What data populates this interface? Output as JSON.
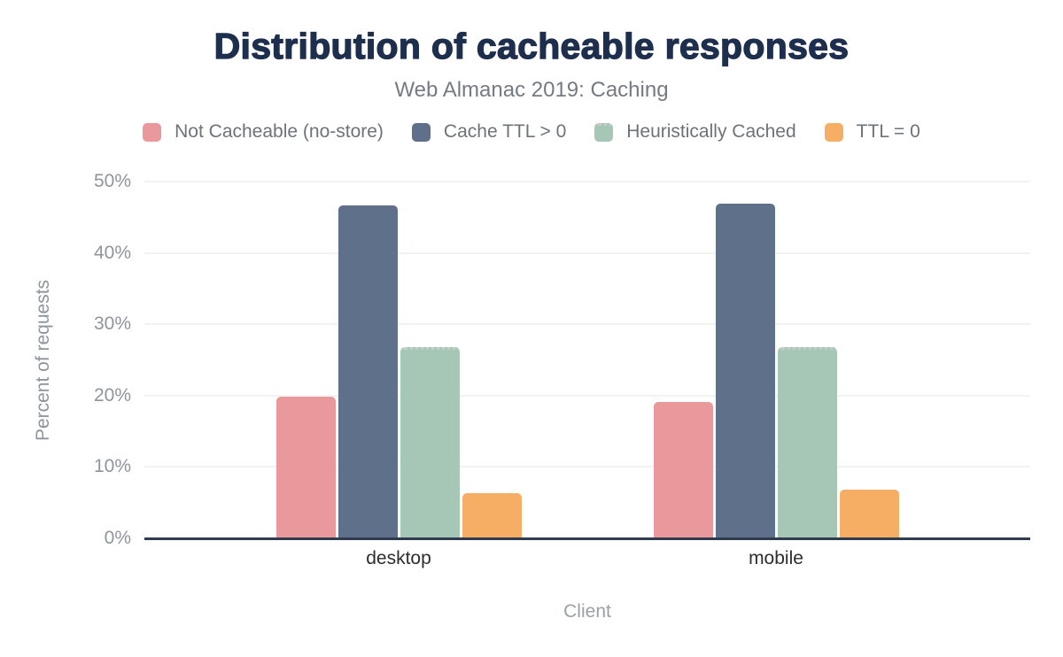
{
  "chart": {
    "title": "Distribution of cacheable responses",
    "subtitle": "Web Almanac 2019: Caching"
  },
  "chart_data": {
    "type": "bar",
    "categories": [
      "desktop",
      "mobile"
    ],
    "series": [
      {
        "name": "Not Cacheable (no-store)",
        "color": "#e9999b",
        "values": [
          19.8,
          19.1
        ]
      },
      {
        "name": "Cache TTL > 0",
        "color": "#5f718a",
        "values": [
          46.6,
          46.9
        ]
      },
      {
        "name": "Heuristically Cached",
        "color": "#a6c7b5",
        "values": [
          26.8,
          26.8
        ],
        "top_edge": "dotted"
      },
      {
        "name": "TTL = 0",
        "color": "#f6ae64",
        "values": [
          6.3,
          6.8
        ]
      }
    ],
    "xlabel": "Client",
    "ylabel": "Percent of requests",
    "ylim": [
      0,
      50
    ],
    "yticks": [
      {
        "value": 0,
        "label": "0%"
      },
      {
        "value": 10,
        "label": "10%"
      },
      {
        "value": 20,
        "label": "20%"
      },
      {
        "value": 30,
        "label": "30%"
      },
      {
        "value": 40,
        "label": "40%"
      },
      {
        "value": 50,
        "label": "50%"
      }
    ],
    "grid": "horizontal",
    "legend_position": "top"
  },
  "colors": {
    "title": "#1e2f4e",
    "subtitle": "#757b84",
    "legend_text": "#6e7377",
    "tick_text": "#8e959b",
    "category_text": "#2d2d2d",
    "axis_line": "#2f3b4e",
    "gridline": "#f0f2f3",
    "dotted_edge": "#c6cdcb",
    "background": "#ffffff"
  }
}
